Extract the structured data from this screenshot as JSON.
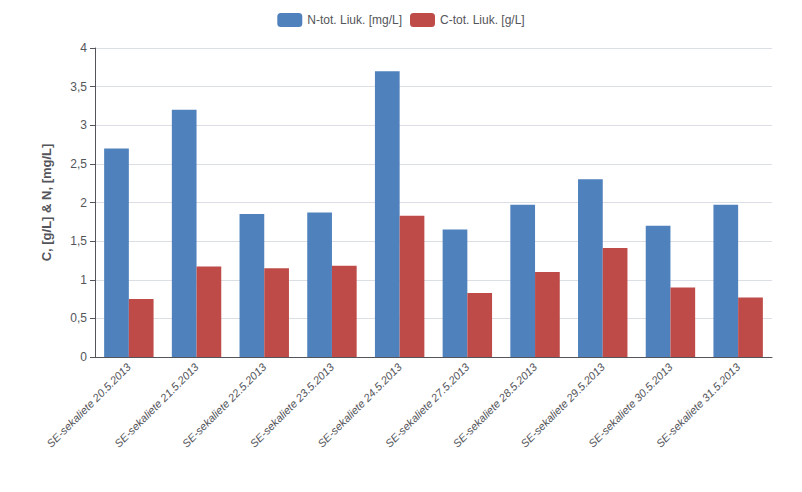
{
  "chart_data": {
    "type": "bar",
    "categories": [
      "SE-sekaliete 20.5.2013",
      "SE-sekaliete 21.5.2013",
      "SE-sekaliete 22.5.2013",
      "SE-sekaliete 23.5.2013",
      "SE-sekaliete 24.5.2013",
      "SE-sekaliete 27.5.2013",
      "SE-sekaliete 28.5.2013",
      "SE-sekaliete 29.5.2013",
      "SE-sekaliete 30.5.2013",
      "SE-sekaliete 31.5.2013"
    ],
    "series": [
      {
        "name": "N-tot. Liuk. [mg/L]",
        "color": "#4F81BD",
        "values": [
          2.7,
          3.2,
          1.85,
          1.87,
          3.7,
          1.65,
          1.97,
          2.3,
          1.7,
          1.97
        ]
      },
      {
        "name": "C-tot. Liuk. [g/L]",
        "color": "#BE4B48",
        "values": [
          0.75,
          1.17,
          1.15,
          1.18,
          1.83,
          0.83,
          1.1,
          1.41,
          0.9,
          0.77
        ]
      }
    ],
    "ylabel": "C, [g/L] & N, [mg/L]",
    "ylim": [
      0,
      4
    ],
    "yticks": [
      0,
      {
        "value": 0.5,
        "label": "0,5"
      },
      1,
      {
        "value": 1.5,
        "label": "1,5"
      },
      2,
      {
        "value": 2.5,
        "label": "2,5"
      },
      3,
      {
        "value": 3.5,
        "label": "3,5"
      },
      4
    ],
    "grid": true,
    "legend": "top"
  }
}
